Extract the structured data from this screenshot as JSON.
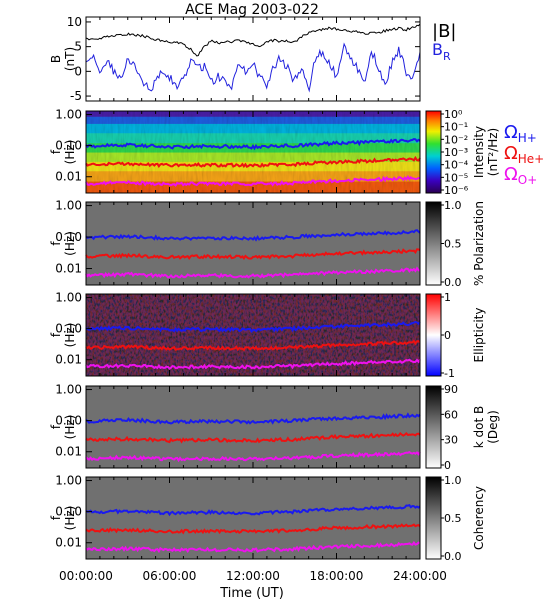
{
  "chart_data": {
    "type": "multi-panel spectrogram",
    "title": "ACE Mag 2003-022",
    "xlabel": "Time (UT)",
    "x_ticks": [
      "00:00:00",
      "06:00:00",
      "12:00:00",
      "18:00:00",
      "24:00:00"
    ],
    "xlim_hours": [
      0,
      24
    ],
    "legend_top": {
      "B_total": {
        "text": "|B|",
        "color": "#000000"
      },
      "B_R": {
        "text": "B",
        "sub": "R",
        "color": "#2222dd"
      }
    },
    "legend_gyro": [
      {
        "base": "Ω",
        "sub": "H+",
        "color": "#1a1aee"
      },
      {
        "base": "Ω",
        "sub": "He+",
        "color": "#ee1111"
      },
      {
        "base": "Ω",
        "sub": "O+",
        "color": "#ee11ee"
      }
    ],
    "panels": [
      {
        "type": "line",
        "ylabel": "B",
        "ylabel_unit": "(nT)",
        "ylim": [
          -6,
          11
        ],
        "y_ticks": [
          "10",
          "5",
          "0",
          "-5"
        ],
        "series": [
          {
            "key": "B_total",
            "color": "#000000",
            "x": [
              0,
              0.5,
              1,
              1.5,
              2,
              2.5,
              3,
              3.5,
              4,
              4.5,
              5,
              5.5,
              6,
              6.5,
              7,
              7.5,
              8,
              8.5,
              9,
              9.5,
              10,
              10.5,
              11,
              11.5,
              12,
              12.5,
              13,
              13.5,
              14,
              14.5,
              15,
              15.5,
              16,
              16.5,
              17,
              17.5,
              18,
              18.5,
              19,
              19.5,
              20,
              20.5,
              21,
              21.5,
              22,
              22.5,
              23,
              23.5,
              24
            ],
            "y": [
              6.5,
              6.8,
              6.6,
              7.0,
              7.2,
              7.3,
              7.5,
              7.4,
              7.2,
              6.9,
              6.5,
              6.2,
              6.0,
              5.8,
              5.5,
              4.5,
              3.0,
              5.0,
              6.2,
              5.8,
              5.9,
              6.0,
              6.2,
              6.0,
              5.5,
              5.0,
              6.0,
              6.3,
              6.0,
              6.2,
              5.8,
              7.0,
              7.8,
              8.0,
              8.5,
              8.8,
              8.6,
              8.4,
              8.2,
              8.0,
              7.6,
              7.8,
              7.9,
              8.2,
              8.5,
              8.7,
              8.4,
              9.0,
              9.5
            ]
          },
          {
            "key": "B_R",
            "color": "#2222dd",
            "x": [
              0,
              0.5,
              1,
              1.5,
              2,
              2.5,
              3,
              3.5,
              4,
              4.5,
              5,
              5.5,
              6,
              6.5,
              7,
              7.5,
              8,
              8.5,
              9,
              9.5,
              10,
              10.5,
              11,
              11.5,
              12,
              12.5,
              13,
              13.5,
              14,
              14.5,
              15,
              15.5,
              16,
              16.5,
              17,
              17.5,
              18,
              18.5,
              19,
              19.5,
              20,
              20.5,
              21,
              21.5,
              22,
              22.5,
              23,
              23.5,
              24
            ],
            "y": [
              1.0,
              3.0,
              0.5,
              2.0,
              0.0,
              -1.5,
              2.5,
              1.0,
              -2.0,
              -3.5,
              -2.5,
              0.5,
              -1.0,
              -3.0,
              -2.0,
              2.0,
              0.5,
              1.0,
              -2.5,
              -1.0,
              -2.0,
              -3.0,
              1.5,
              0.0,
              2.0,
              -1.5,
              -2.5,
              1.0,
              3.0,
              0.5,
              -2.0,
              1.0,
              -3.5,
              2.5,
              4.0,
              1.5,
              -1.0,
              5.0,
              3.0,
              0.5,
              -2.0,
              4.0,
              1.0,
              -3.0,
              2.0,
              4.5,
              0.0,
              -1.0,
              3.5
            ]
          }
        ]
      },
      {
        "type": "heatmap",
        "name": "power",
        "ylabel": "f",
        "ylabel_unit": "(Hz)",
        "colorbar": {
          "label": "Intensity",
          "unit": "(nT²/Hz)",
          "ticks": [
            "10⁰",
            "10⁻¹",
            "10⁻²",
            "10⁻³",
            "10⁻⁴",
            "10⁻⁵",
            "10⁻⁶"
          ]
        }
      },
      {
        "type": "heatmap",
        "name": "polarization",
        "ylabel": "f",
        "ylabel_unit": "(Hz)",
        "colorbar": {
          "label": "% Polarization",
          "unit": "",
          "ticks": [
            "1.0",
            "0.5",
            "0.0"
          ]
        }
      },
      {
        "type": "heatmap",
        "name": "ellipticity",
        "ylabel": "f",
        "ylabel_unit": "(Hz)",
        "colorbar": {
          "label": "Ellipticity",
          "unit": "",
          "ticks": [
            "1",
            "0",
            "-1"
          ]
        }
      },
      {
        "type": "heatmap",
        "name": "kdotb",
        "ylabel": "f",
        "ylabel_unit": "(Hz)",
        "colorbar": {
          "label": "k dot B",
          "unit": "(Deg)",
          "ticks": [
            "90",
            "60",
            "30",
            "0"
          ]
        }
      },
      {
        "type": "heatmap",
        "name": "coherency",
        "ylabel": "f",
        "ylabel_unit": "(Hz)",
        "colorbar": {
          "label": "Coherency",
          "unit": "",
          "ticks": [
            "1.0",
            "0.5",
            "0.0"
          ]
        }
      }
    ],
    "freq_axis": {
      "scale": "log",
      "ylim_hz": [
        0.003,
        1.3
      ],
      "ticks": [
        "1.00",
        "0.10",
        "0.01"
      ]
    },
    "gyrofrequency_lines": [
      {
        "ion": "H+",
        "color": "#1a1aee",
        "x": [
          0,
          3,
          6,
          9,
          12,
          15,
          18,
          21,
          24
        ],
        "y_hz": [
          0.095,
          0.105,
          0.09,
          0.095,
          0.09,
          0.1,
          0.12,
          0.13,
          0.15
        ]
      },
      {
        "ion": "He+",
        "color": "#ee1111",
        "x": [
          0,
          3,
          6,
          9,
          12,
          15,
          18,
          21,
          24
        ],
        "y_hz": [
          0.024,
          0.026,
          0.023,
          0.024,
          0.023,
          0.025,
          0.03,
          0.033,
          0.037
        ]
      },
      {
        "ion": "O+",
        "color": "#ee11ee",
        "x": [
          0,
          3,
          6,
          9,
          12,
          15,
          18,
          21,
          24
        ],
        "y_hz": [
          0.006,
          0.0065,
          0.0058,
          0.006,
          0.0058,
          0.0063,
          0.0075,
          0.0082,
          0.0093
        ]
      }
    ]
  }
}
